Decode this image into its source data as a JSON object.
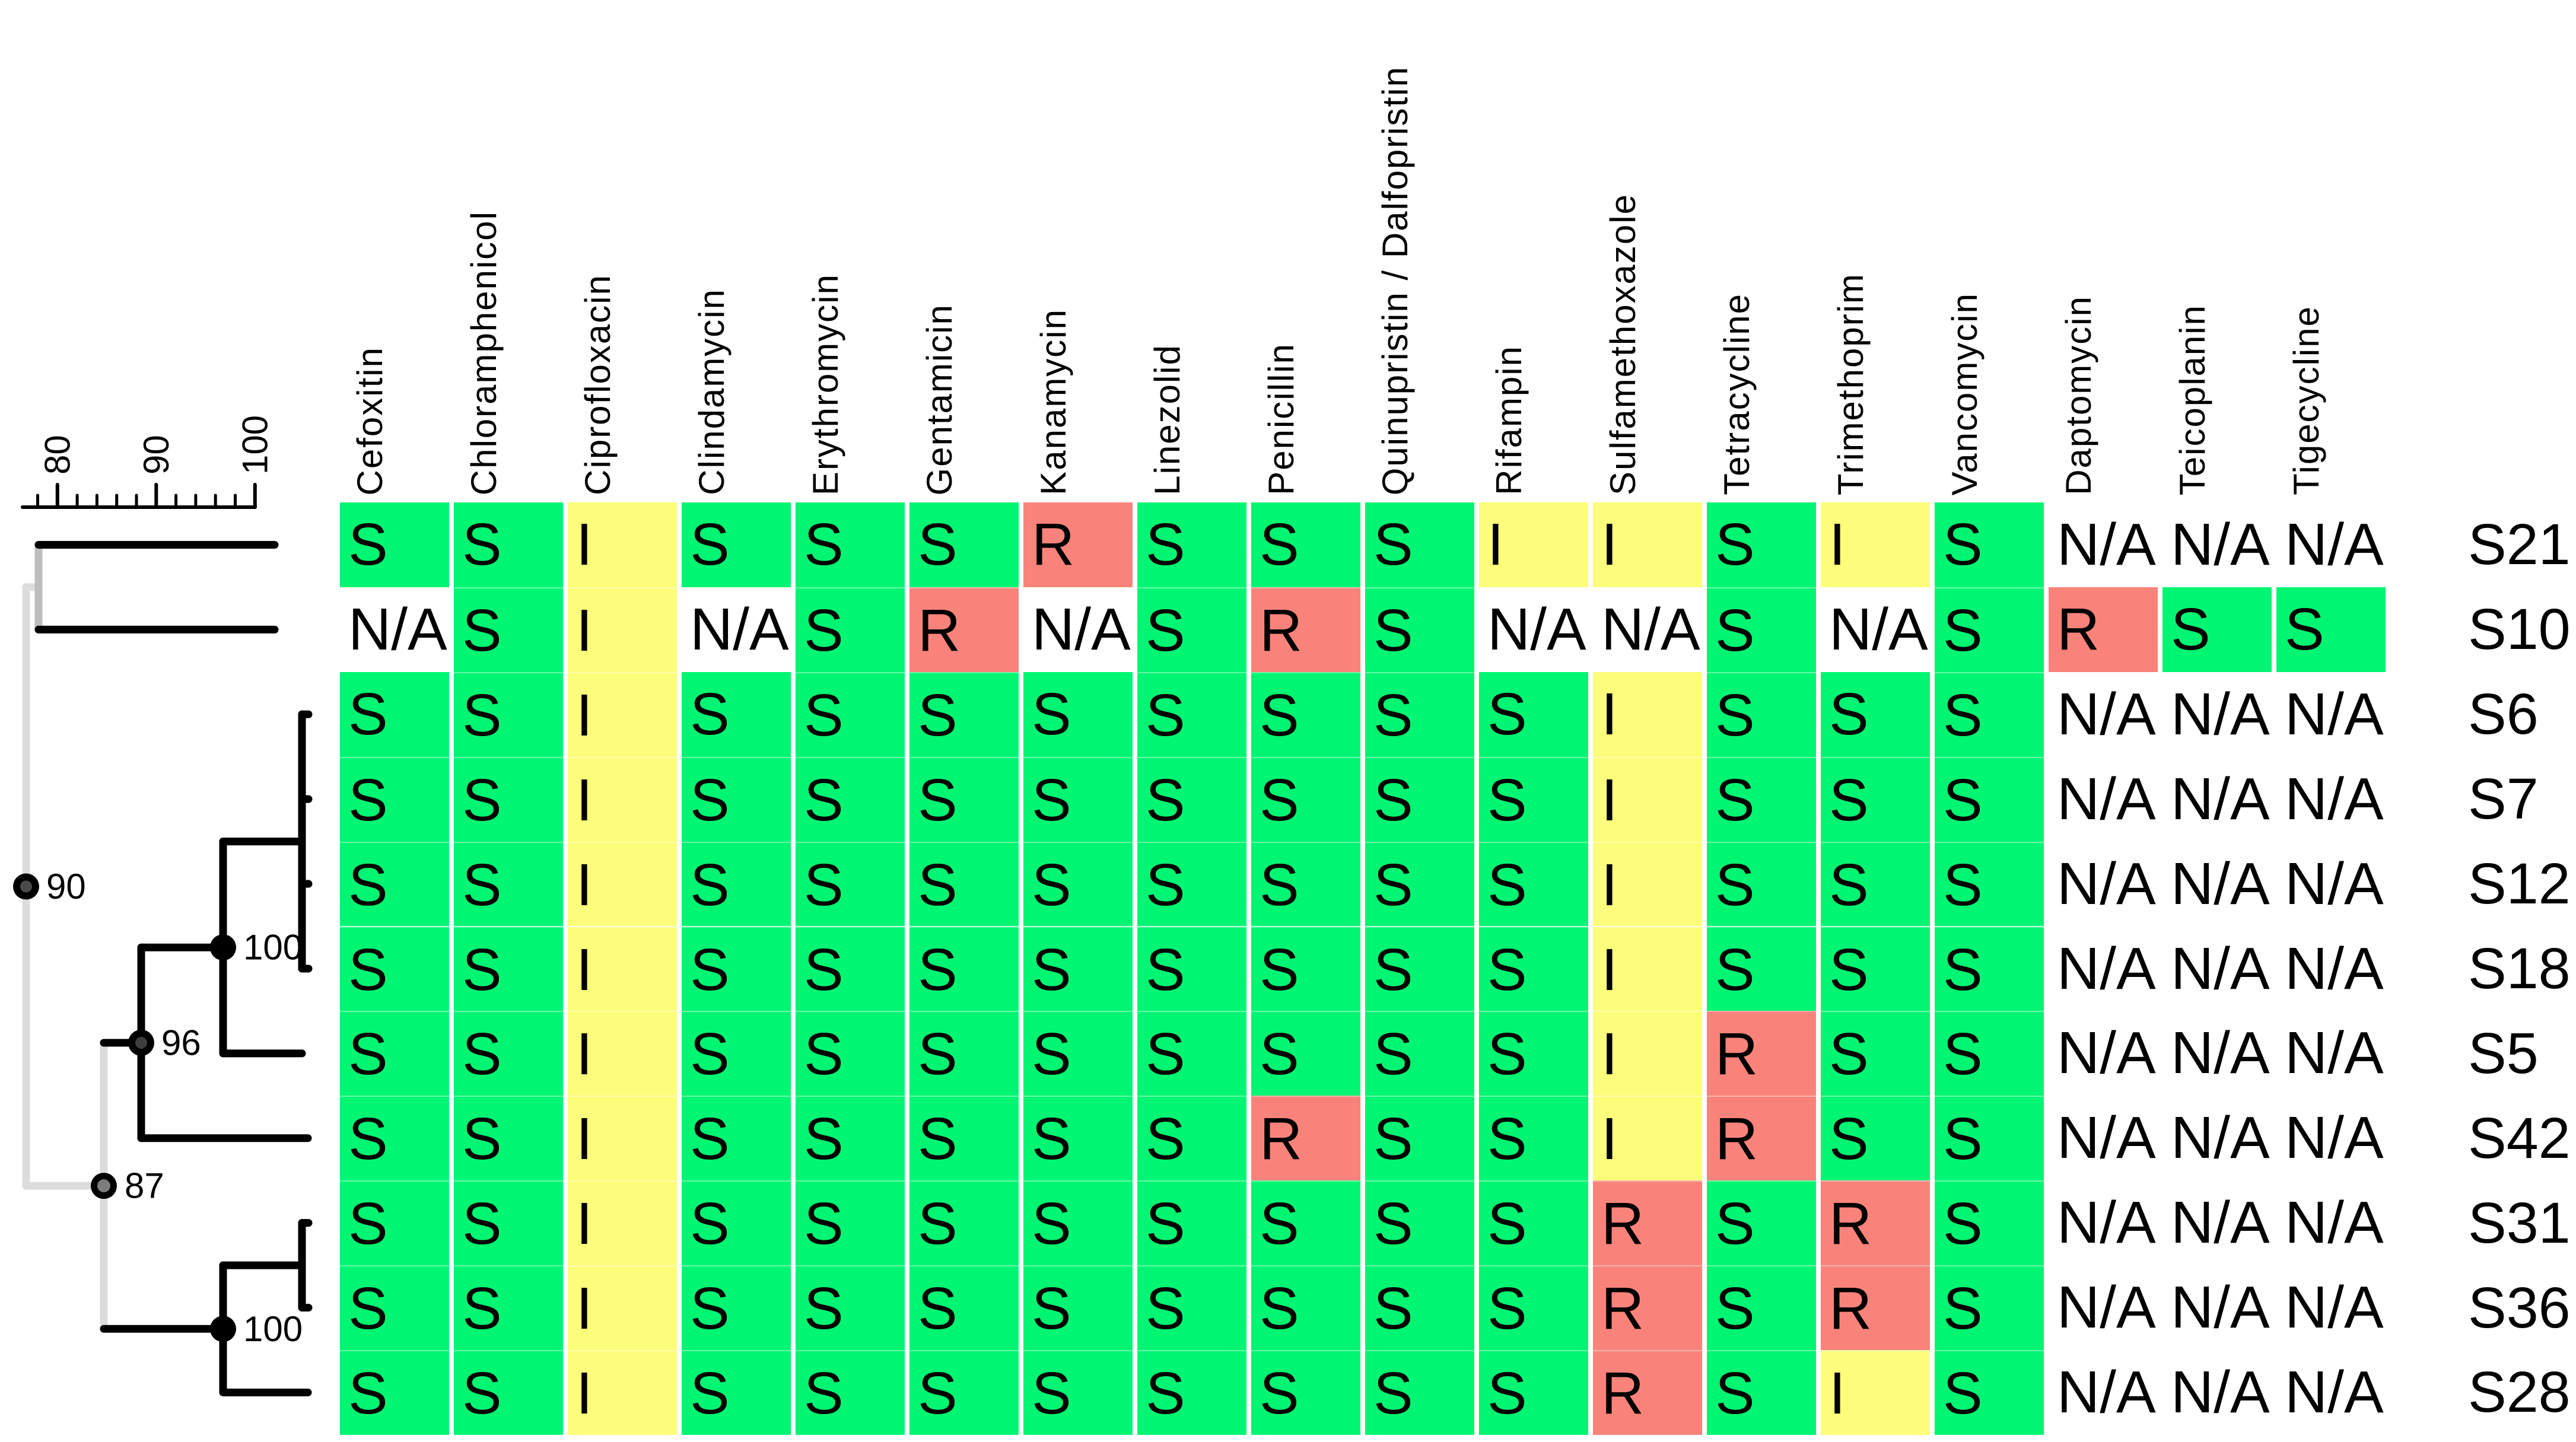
{
  "chart_data": {
    "type": "heatmap",
    "subtype": "phylogenetic-tree-with-antibiogram",
    "columns": [
      "Cefoxitin",
      "Chloramphenicol",
      "Ciprofloxacin",
      "Clindamycin",
      "Erythromycin",
      "Gentamicin",
      "Kanamycin",
      "Linezolid",
      "Penicillin",
      "Quinupristin / Dalfopristin",
      "Rifampin",
      "Sulfamethoxazole",
      "Tetracycline",
      "Trimethoprim",
      "Vancomycin",
      "Daptomycin",
      "Teicoplanin",
      "Tigecycline"
    ],
    "rows": [
      "S21",
      "S10",
      "S6",
      "S7",
      "S12",
      "S18",
      "S5",
      "S42",
      "S31",
      "S36",
      "S28"
    ],
    "matrix": [
      [
        "S",
        "S",
        "I",
        "S",
        "S",
        "S",
        "R",
        "S",
        "S",
        "S",
        "I",
        "I",
        "S",
        "I",
        "S",
        "N/A",
        "N/A",
        "N/A"
      ],
      [
        "N/A",
        "S",
        "I",
        "N/A",
        "S",
        "R",
        "N/A",
        "S",
        "R",
        "S",
        "N/A",
        "N/A",
        "S",
        "N/A",
        "S",
        "R",
        "S",
        "S"
      ],
      [
        "S",
        "S",
        "I",
        "S",
        "S",
        "S",
        "S",
        "S",
        "S",
        "S",
        "S",
        "I",
        "S",
        "S",
        "S",
        "N/A",
        "N/A",
        "N/A"
      ],
      [
        "S",
        "S",
        "I",
        "S",
        "S",
        "S",
        "S",
        "S",
        "S",
        "S",
        "S",
        "I",
        "S",
        "S",
        "S",
        "N/A",
        "N/A",
        "N/A"
      ],
      [
        "S",
        "S",
        "I",
        "S",
        "S",
        "S",
        "S",
        "S",
        "S",
        "S",
        "S",
        "I",
        "S",
        "S",
        "S",
        "N/A",
        "N/A",
        "N/A"
      ],
      [
        "S",
        "S",
        "I",
        "S",
        "S",
        "S",
        "S",
        "S",
        "S",
        "S",
        "S",
        "I",
        "S",
        "S",
        "S",
        "N/A",
        "N/A",
        "N/A"
      ],
      [
        "S",
        "S",
        "I",
        "S",
        "S",
        "S",
        "S",
        "S",
        "S",
        "S",
        "S",
        "I",
        "R",
        "S",
        "S",
        "N/A",
        "N/A",
        "N/A"
      ],
      [
        "S",
        "S",
        "I",
        "S",
        "S",
        "S",
        "S",
        "S",
        "R",
        "S",
        "S",
        "I",
        "R",
        "S",
        "S",
        "N/A",
        "N/A",
        "N/A"
      ],
      [
        "S",
        "S",
        "I",
        "S",
        "S",
        "S",
        "S",
        "S",
        "S",
        "S",
        "S",
        "R",
        "S",
        "R",
        "S",
        "N/A",
        "N/A",
        "N/A"
      ],
      [
        "S",
        "S",
        "I",
        "S",
        "S",
        "S",
        "S",
        "S",
        "S",
        "S",
        "S",
        "R",
        "S",
        "R",
        "S",
        "N/A",
        "N/A",
        "N/A"
      ],
      [
        "S",
        "S",
        "I",
        "S",
        "S",
        "S",
        "S",
        "S",
        "S",
        "S",
        "S",
        "R",
        "S",
        "I",
        "S",
        "N/A",
        "N/A",
        "N/A"
      ]
    ],
    "cell_colors": {
      "S": "#00F573",
      "I": "#FDFD7C",
      "R": "#F9837B",
      "N/A": "#FFFFFF"
    },
    "tree": {
      "newick": "((S21,S10),((((S6,S7,S12,S18),S5)100,S42)96,((S31,S36),S28)100)87)90;",
      "bootstrap_labels": [
        "90",
        "87",
        "96",
        "100",
        "100"
      ],
      "axis": {
        "major_ticks": [
          "80",
          "90",
          "100"
        ],
        "major_tick_values": [
          80,
          90,
          100
        ],
        "minor_tick_values": [
          78,
          82,
          84,
          86,
          88,
          92,
          94,
          96,
          98
        ]
      }
    }
  }
}
